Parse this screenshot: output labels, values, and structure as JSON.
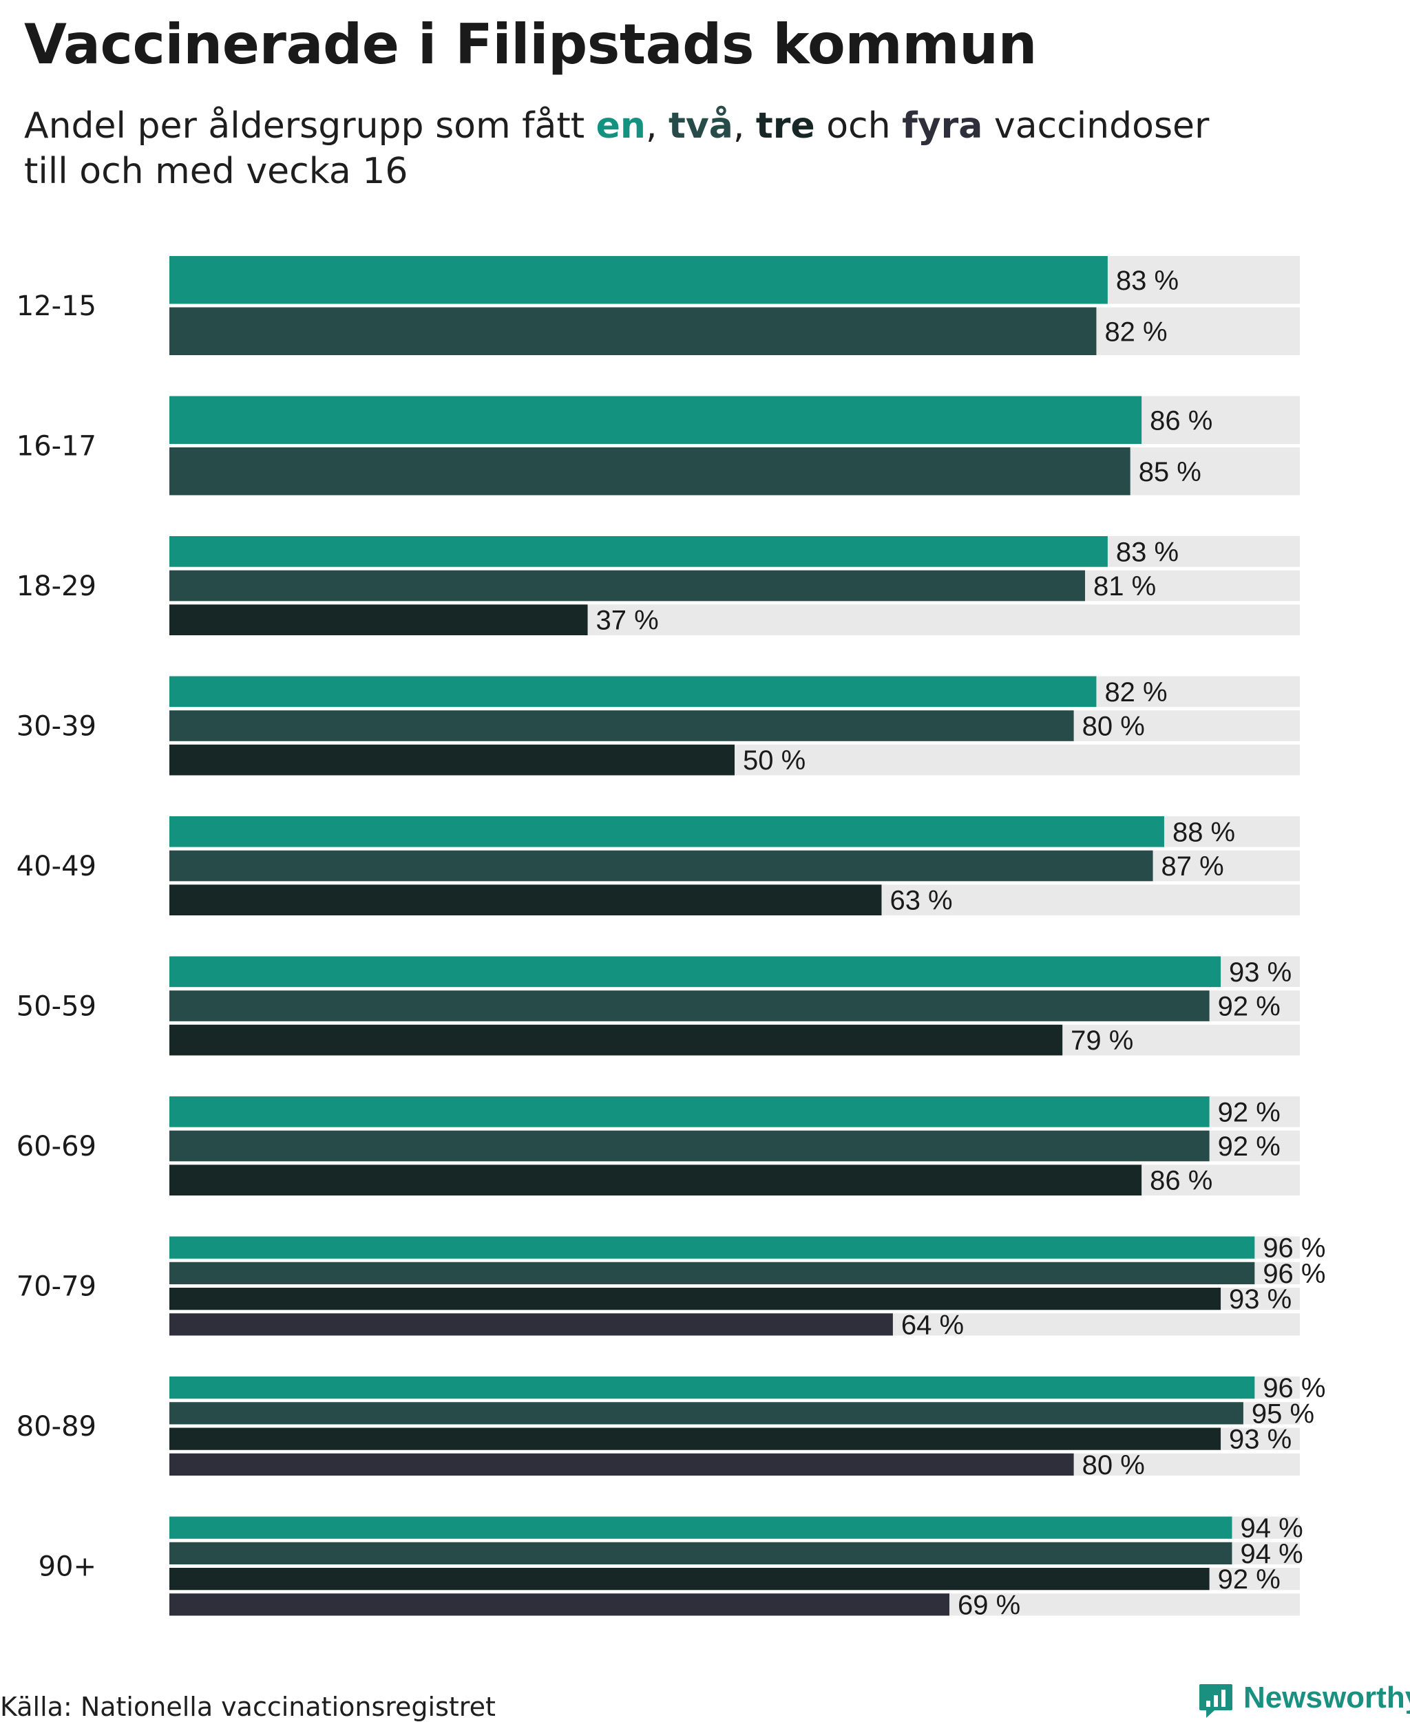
{
  "header": {
    "title": "Vaccinerade i Filipstads kommun",
    "subtitle_prefix": "Andel per åldersgrupp som fått ",
    "dose_words": [
      "en",
      "två",
      "tre",
      "fyra"
    ],
    "sep_1": ", ",
    "sep_2": ", ",
    "sep_3": " och ",
    "subtitle_suffix": " vaccindoser",
    "subtitle_line2": "till och med vecka 16"
  },
  "colors": {
    "dose1": "#13937f",
    "dose2": "#264b49",
    "dose3": "#172726",
    "dose4": "#2f2e3b",
    "track": "#e9e9e9"
  },
  "chart_data": {
    "type": "bar",
    "orientation": "horizontal",
    "title": "Vaccinerade i Filipstads kommun",
    "subtitle": "Andel per åldersgrupp som fått en, två, tre och fyra vaccindoser till och med vecka 16",
    "unit_suffix": " %",
    "xlim": [
      0,
      100
    ],
    "series_names": [
      "en",
      "två",
      "tre",
      "fyra"
    ],
    "groups": [
      {
        "label": "12-15",
        "values": [
          83,
          82
        ]
      },
      {
        "label": "16-17",
        "values": [
          86,
          85
        ]
      },
      {
        "label": "18-29",
        "values": [
          83,
          81,
          37
        ]
      },
      {
        "label": "30-39",
        "values": [
          82,
          80,
          50
        ]
      },
      {
        "label": "40-49",
        "values": [
          88,
          87,
          63
        ]
      },
      {
        "label": "50-59",
        "values": [
          93,
          92,
          79
        ]
      },
      {
        "label": "60-69",
        "values": [
          92,
          92,
          86
        ]
      },
      {
        "label": "70-79",
        "values": [
          96,
          96,
          93,
          64
        ]
      },
      {
        "label": "80-89",
        "values": [
          96,
          95,
          93,
          80
        ]
      },
      {
        "label": "90+",
        "values": [
          94,
          94,
          92,
          69
        ]
      }
    ]
  },
  "footer": {
    "source": "Källa: Nationella vaccinationsregistret",
    "brand": "Newsworthy",
    "brand_icon": "newsworthy-logo-icon"
  }
}
